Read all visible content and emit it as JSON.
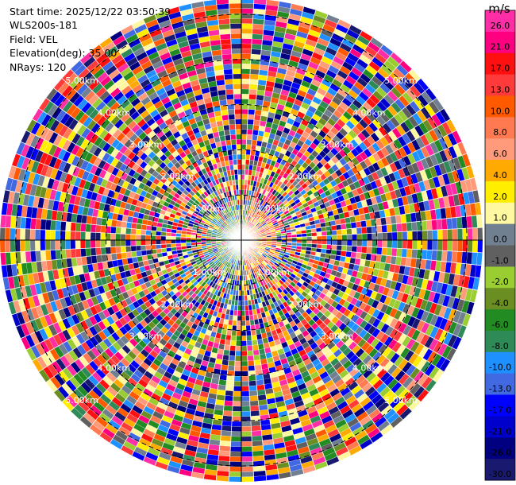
{
  "header": {
    "start_time": "Start time: 2025/12/22 03:50:39",
    "instrument": "WLS200s-181",
    "field": "Field: VEL",
    "elevation": "Elevation(deg): 35.00",
    "nrays": "NRays: 120"
  },
  "chart_data": {
    "type": "heatmap",
    "projection": "polar-ppi",
    "field": "VEL",
    "units": "m/s",
    "elevation_deg": 35.0,
    "n_rays": 120,
    "range_rings_km": [
      1.0,
      2.0,
      3.0,
      4.0,
      5.0
    ],
    "range_ring_labels": [
      "1.00km",
      "2.00km",
      "3.00km",
      "4.00km",
      "5.00km"
    ],
    "max_range_km": 5.35,
    "colorbar": {
      "label": "m/s",
      "ticks": [
        "26.0",
        "21.0",
        "17.0",
        "13.0",
        "10.0",
        "8.0",
        "6.0",
        "4.0",
        "2.0",
        "1.0",
        "0.0",
        "-1.0",
        "-2.0",
        "-4.0",
        "-6.0",
        "-8.0",
        "-10.0",
        "-13.0",
        "-17.0",
        "-21.0",
        "-26.0",
        "-30.0"
      ],
      "colors": [
        "#ff2da6",
        "#ff0080",
        "#ff1010",
        "#ff3a3a",
        "#ff5a00",
        "#ff7a50",
        "#ff9a7a",
        "#ffaa00",
        "#ffee00",
        "#fff8a0",
        "#708090",
        "#606060",
        "#9acd32",
        "#6b8e23",
        "#228b22",
        "#2e8b57",
        "#1e90ff",
        "#4169e1",
        "#0000ff",
        "#0000cd",
        "#000080",
        "#191970"
      ]
    }
  }
}
